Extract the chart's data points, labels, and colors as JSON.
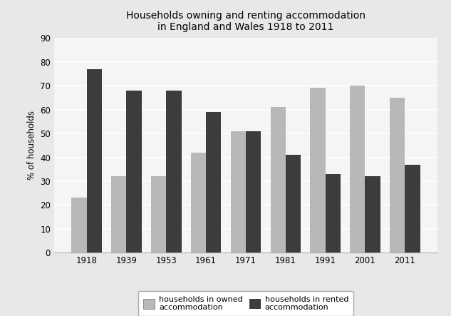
{
  "title_line1": "Households owning and renting accommodation",
  "title_line2": "in England and Wales 1918 to 2011",
  "years": [
    "1918",
    "1939",
    "1953",
    "1961",
    "1971",
    "1981",
    "1991",
    "2001",
    "2011"
  ],
  "owned": [
    23,
    32,
    32,
    42,
    51,
    61,
    69,
    70,
    65
  ],
  "rented": [
    77,
    68,
    68,
    59,
    51,
    41,
    33,
    32,
    37
  ],
  "owned_color": "#b8b8b8",
  "rented_color": "#3c3c3c",
  "ylabel": "% of households",
  "ylim": [
    0,
    90
  ],
  "yticks": [
    0,
    10,
    20,
    30,
    40,
    50,
    60,
    70,
    80,
    90
  ],
  "bar_width": 0.38,
  "legend_owned": "households in owned\naccommodation",
  "legend_rented": "households in rented\naccommodation",
  "plot_bg_color": "#f5f5f5",
  "fig_bg_color": "#e8e8e8",
  "grid_color": "#ffffff",
  "title_fontsize": 10,
  "axis_fontsize": 8.5
}
